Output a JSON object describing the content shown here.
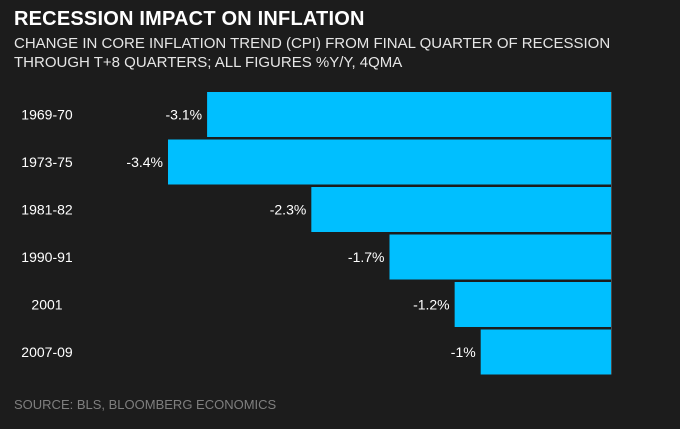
{
  "chart_data": {
    "type": "bar",
    "orientation": "horizontal",
    "title": "RECESSION IMPACT ON INFLATION",
    "subtitle": "CHANGE IN CORE INFLATION TREND (CPI) FROM FINAL QUARTER OF RECESSION THROUGH T+8 QUARTERS; ALL FIGURES %Y/Y, 4QMA",
    "categories": [
      "1969-70",
      "1973-75",
      "1981-82",
      "1990-91",
      "2001",
      "2007-09"
    ],
    "values": [
      -3.1,
      -3.4,
      -2.3,
      -1.7,
      -1.2,
      -1.0
    ],
    "data_labels": [
      "-3.1%",
      "-3.4%",
      "-2.3%",
      "-1.7%",
      "-1.2%",
      "-1%"
    ],
    "xlim": [
      -3.4,
      0
    ],
    "grid": false,
    "bar_color": "#00bfff",
    "source": "SOURCE: BLS, BLOOMBERG ECONOMICS"
  },
  "colors": {
    "background": "#1c1c1c",
    "bar": "#00bfff",
    "text": "#ffffff",
    "source_text": "#7f7f7f"
  }
}
